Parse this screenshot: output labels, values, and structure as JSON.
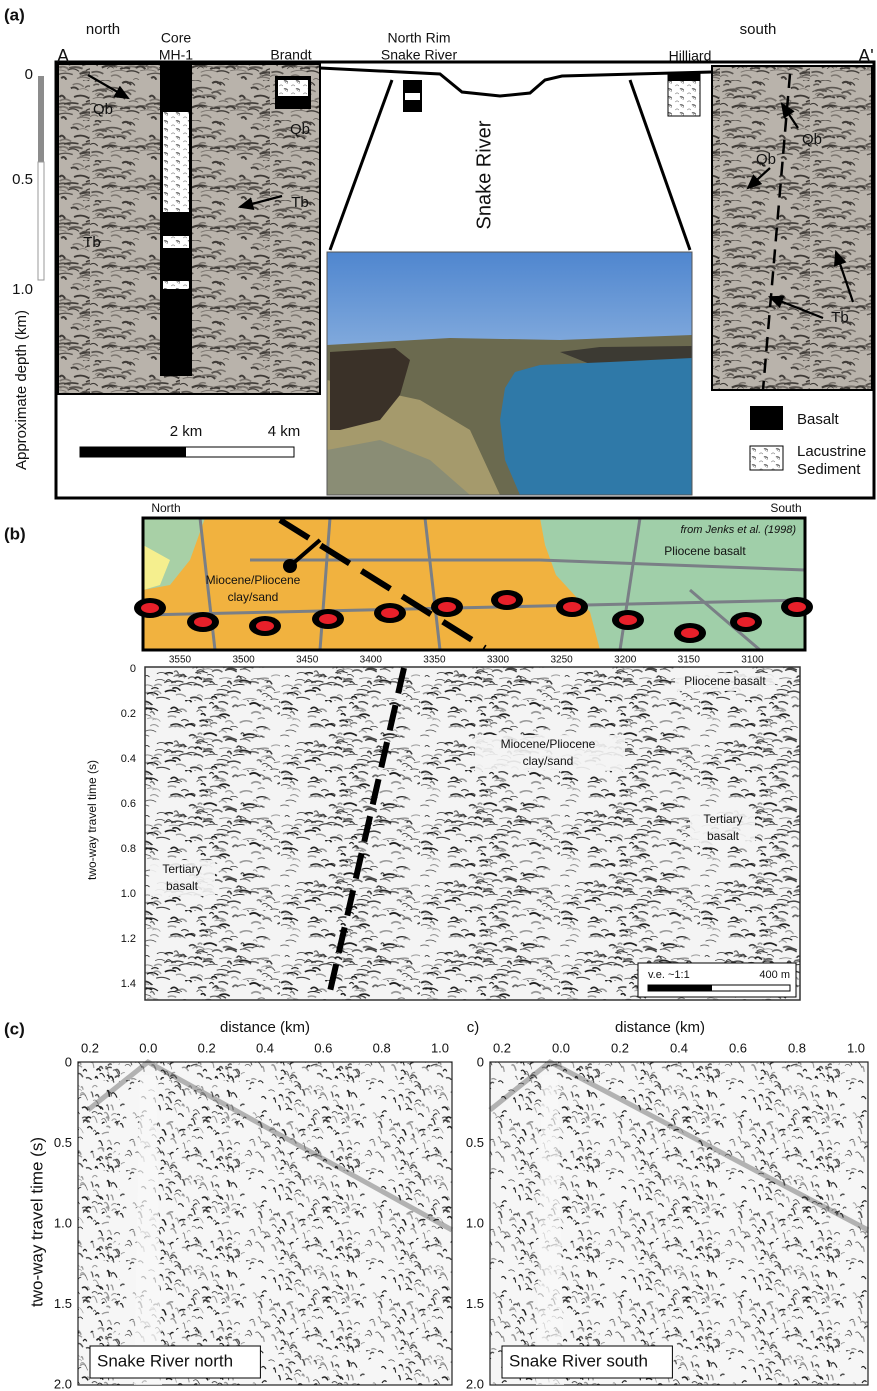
{
  "panel_a": {
    "label": "(a)",
    "north": "north",
    "south": "south",
    "a_left": "A",
    "a_right": "A'",
    "core": [
      "Core",
      "MH-1"
    ],
    "brandt": "Brandt",
    "north_rim": [
      "North Rim",
      "Snake River"
    ],
    "hilliard": "Hilliard",
    "river": "Snake River",
    "depth_ticks": [
      "0",
      "0.5",
      "1.0"
    ],
    "depth_axis": "Approximate depth (km)",
    "units": [
      "Qb",
      "Tb",
      "Qb",
      "Tb",
      "Qb",
      "Qb",
      "Tb"
    ],
    "scale_ticks": [
      "2 km",
      "4 km"
    ],
    "legend": [
      "Basalt",
      "Lacustrine",
      "Sediment"
    ]
  },
  "panel_b": {
    "label": "(b)",
    "north": "North",
    "south": "South",
    "source": "from Jenks et al. (1998)",
    "map_labels": [
      "Pliocene basalt",
      "Miocene/Pliocene",
      "clay/sand"
    ],
    "distance_ticks": [
      "3550",
      "3500",
      "3450",
      "3400",
      "3350",
      "3300",
      "3250",
      "3200",
      "3150",
      "3100"
    ],
    "time_ticks": [
      "0",
      "0.2",
      "0.4",
      "0.6",
      "0.8",
      "1.0",
      "1.2",
      "1.4"
    ],
    "time_axis": "two-way travel time (s)",
    "section_labels": [
      "Pliocene basalt",
      "Miocene/Pliocene",
      "clay/sand",
      "Tertiary",
      "basalt",
      "Tertiary",
      "basalt"
    ],
    "scale": [
      "v.e. ~1:1",
      "400 m"
    ]
  },
  "panel_c": {
    "label": "(c)",
    "label_right": "c)",
    "x_axis": "distance (km)",
    "x_ticks": [
      "0.2",
      "0.0",
      "0.2",
      "0.4",
      "0.6",
      "0.8",
      "1.0"
    ],
    "y_ticks": [
      "0",
      "0.5",
      "1.0",
      "1.5",
      "2.0"
    ],
    "y_axis": "two-way travel time (s)",
    "titles": [
      "Snake River north",
      "Snake River south"
    ]
  }
}
